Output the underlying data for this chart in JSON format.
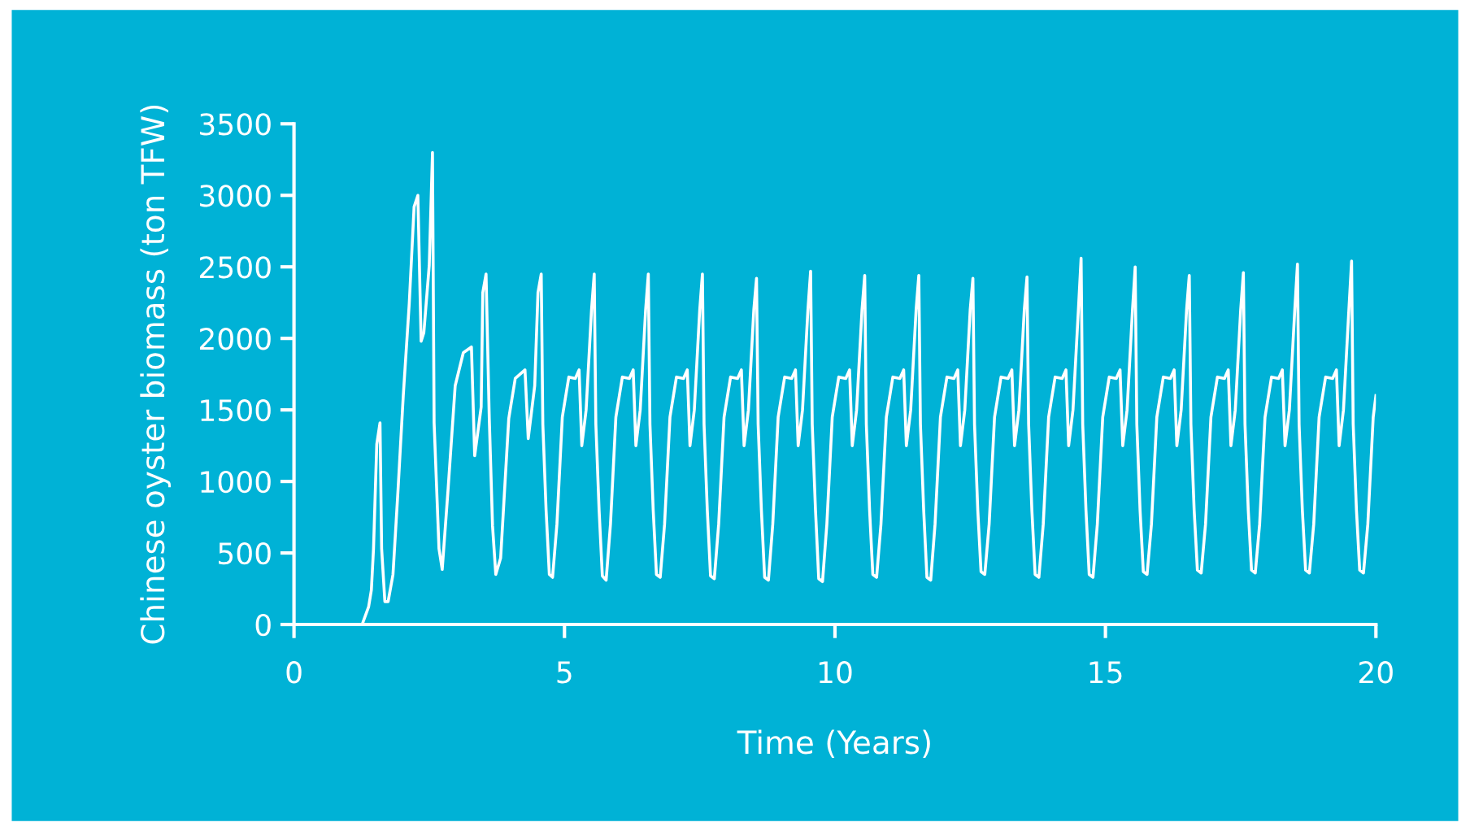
{
  "chart_data": {
    "type": "line",
    "xlabel": "Time (Years)",
    "ylabel": "Chinese oyster biomass (ton TFW)",
    "xlim": [
      0,
      20
    ],
    "xticks": [
      0,
      5,
      10,
      15,
      20
    ],
    "ylim": [
      0,
      3500
    ],
    "yticks": [
      0,
      500,
      1000,
      1500,
      2000,
      2500,
      3000,
      3500
    ],
    "grid": false,
    "series": [
      {
        "color": "#ffffff",
        "x": [
          0,
          1.26,
          1.38,
          1.43,
          1.47,
          1.53,
          1.59,
          1.62,
          1.68,
          1.74,
          1.83,
          1.92,
          2.02,
          2.13,
          2.22,
          2.29,
          2.35,
          2.4,
          2.5,
          2.56,
          2.59,
          2.68,
          2.74,
          2.85,
          2.98,
          3.13,
          3.28,
          3.34,
          3.46,
          3.49,
          3.55,
          3.61,
          3.67,
          3.73,
          3.82,
          3.97,
          4.09,
          4.27,
          4.33,
          4.45,
          4.51,
          4.57,
          4.6,
          4.66,
          4.72,
          4.78,
          4.86,
          4.96,
          5.08,
          5.2,
          5.27,
          5.32,
          5.4,
          5.5,
          5.55,
          5.58,
          5.64,
          5.7,
          5.77,
          5.85,
          5.95,
          6.07,
          6.2,
          6.27,
          6.32,
          6.4,
          6.5,
          6.55,
          6.58,
          6.64,
          6.7,
          6.77,
          6.85,
          6.95,
          7.07,
          7.2,
          7.27,
          7.32,
          7.4,
          7.5,
          7.55,
          7.58,
          7.64,
          7.7,
          7.77,
          7.85,
          7.95,
          8.07,
          8.2,
          8.27,
          8.32,
          8.4,
          8.5,
          8.55,
          8.58,
          8.64,
          8.7,
          8.77,
          8.85,
          8.95,
          9.07,
          9.2,
          9.27,
          9.32,
          9.4,
          9.5,
          9.55,
          9.58,
          9.64,
          9.7,
          9.77,
          9.85,
          9.95,
          10.07,
          10.2,
          10.27,
          10.32,
          10.4,
          10.5,
          10.55,
          10.58,
          10.64,
          10.7,
          10.77,
          10.85,
          10.95,
          11.07,
          11.2,
          11.27,
          11.32,
          11.4,
          11.5,
          11.55,
          11.58,
          11.64,
          11.7,
          11.77,
          11.85,
          11.95,
          12.07,
          12.2,
          12.27,
          12.32,
          12.4,
          12.5,
          12.55,
          12.58,
          12.64,
          12.7,
          12.77,
          12.85,
          12.95,
          13.07,
          13.2,
          13.27,
          13.32,
          13.4,
          13.5,
          13.55,
          13.58,
          13.64,
          13.7,
          13.77,
          13.85,
          13.95,
          14.07,
          14.2,
          14.27,
          14.32,
          14.4,
          14.5,
          14.55,
          14.58,
          14.64,
          14.7,
          14.77,
          14.85,
          14.95,
          15.07,
          15.2,
          15.27,
          15.32,
          15.4,
          15.5,
          15.55,
          15.58,
          15.64,
          15.7,
          15.77,
          15.85,
          15.95,
          16.07,
          16.2,
          16.27,
          16.32,
          16.4,
          16.5,
          16.55,
          16.58,
          16.64,
          16.7,
          16.77,
          16.85,
          16.95,
          17.07,
          17.2,
          17.27,
          17.32,
          17.4,
          17.5,
          17.55,
          17.58,
          17.64,
          17.7,
          17.77,
          17.85,
          17.95,
          18.07,
          18.2,
          18.27,
          18.32,
          18.4,
          18.5,
          18.55,
          18.58,
          18.64,
          18.7,
          18.77,
          18.85,
          18.95,
          19.07,
          19.2,
          19.27,
          19.32,
          19.4,
          19.5,
          19.55,
          19.58,
          19.64,
          19.7,
          19.77,
          19.85,
          19.95,
          20.0
        ],
        "values": [
          0,
          0,
          125,
          240,
          530,
          1260,
          1410,
          530,
          160,
          160,
          350,
          920,
          1600,
          2240,
          2920,
          3000,
          1980,
          2040,
          2510,
          3300,
          1410,
          530,
          385,
          955,
          1670,
          1900,
          1940,
          1180,
          1520,
          2320,
          2450,
          1440,
          690,
          350,
          465,
          1440,
          1720,
          1780,
          1300,
          1670,
          2320,
          2450,
          1400,
          800,
          350,
          330,
          700,
          1450,
          1730,
          1720,
          1780,
          1250,
          1500,
          2200,
          2450,
          1400,
          800,
          340,
          310,
          700,
          1450,
          1730,
          1720,
          1780,
          1250,
          1500,
          2200,
          2450,
          1400,
          800,
          350,
          330,
          700,
          1450,
          1730,
          1720,
          1780,
          1250,
          1500,
          2200,
          2450,
          1400,
          800,
          340,
          320,
          700,
          1450,
          1730,
          1720,
          1780,
          1250,
          1500,
          2200,
          2420,
          1400,
          800,
          330,
          310,
          700,
          1450,
          1730,
          1720,
          1780,
          1250,
          1500,
          2200,
          2470,
          1400,
          800,
          320,
          300,
          700,
          1450,
          1730,
          1720,
          1780,
          1250,
          1500,
          2200,
          2440,
          1400,
          800,
          350,
          330,
          700,
          1450,
          1730,
          1720,
          1780,
          1250,
          1500,
          2200,
          2440,
          1400,
          800,
          330,
          310,
          700,
          1450,
          1730,
          1720,
          1780,
          1250,
          1500,
          2200,
          2420,
          1400,
          800,
          370,
          350,
          700,
          1450,
          1730,
          1720,
          1780,
          1250,
          1500,
          2200,
          2430,
          1400,
          800,
          350,
          330,
          700,
          1450,
          1730,
          1720,
          1780,
          1250,
          1500,
          2200,
          2560,
          1400,
          800,
          350,
          330,
          700,
          1450,
          1730,
          1720,
          1780,
          1250,
          1500,
          2200,
          2500,
          1400,
          800,
          370,
          350,
          700,
          1450,
          1730,
          1720,
          1780,
          1250,
          1500,
          2200,
          2440,
          1400,
          800,
          380,
          360,
          700,
          1450,
          1730,
          1720,
          1780,
          1250,
          1500,
          2200,
          2460,
          1400,
          800,
          380,
          360,
          700,
          1450,
          1730,
          1720,
          1780,
          1250,
          1500,
          2200,
          2520,
          1400,
          800,
          380,
          360,
          700,
          1450,
          1730,
          1720,
          1780,
          1250,
          1500,
          2200,
          2540,
          1400,
          800,
          380,
          360,
          700,
          1450,
          1600
        ]
      }
    ]
  }
}
